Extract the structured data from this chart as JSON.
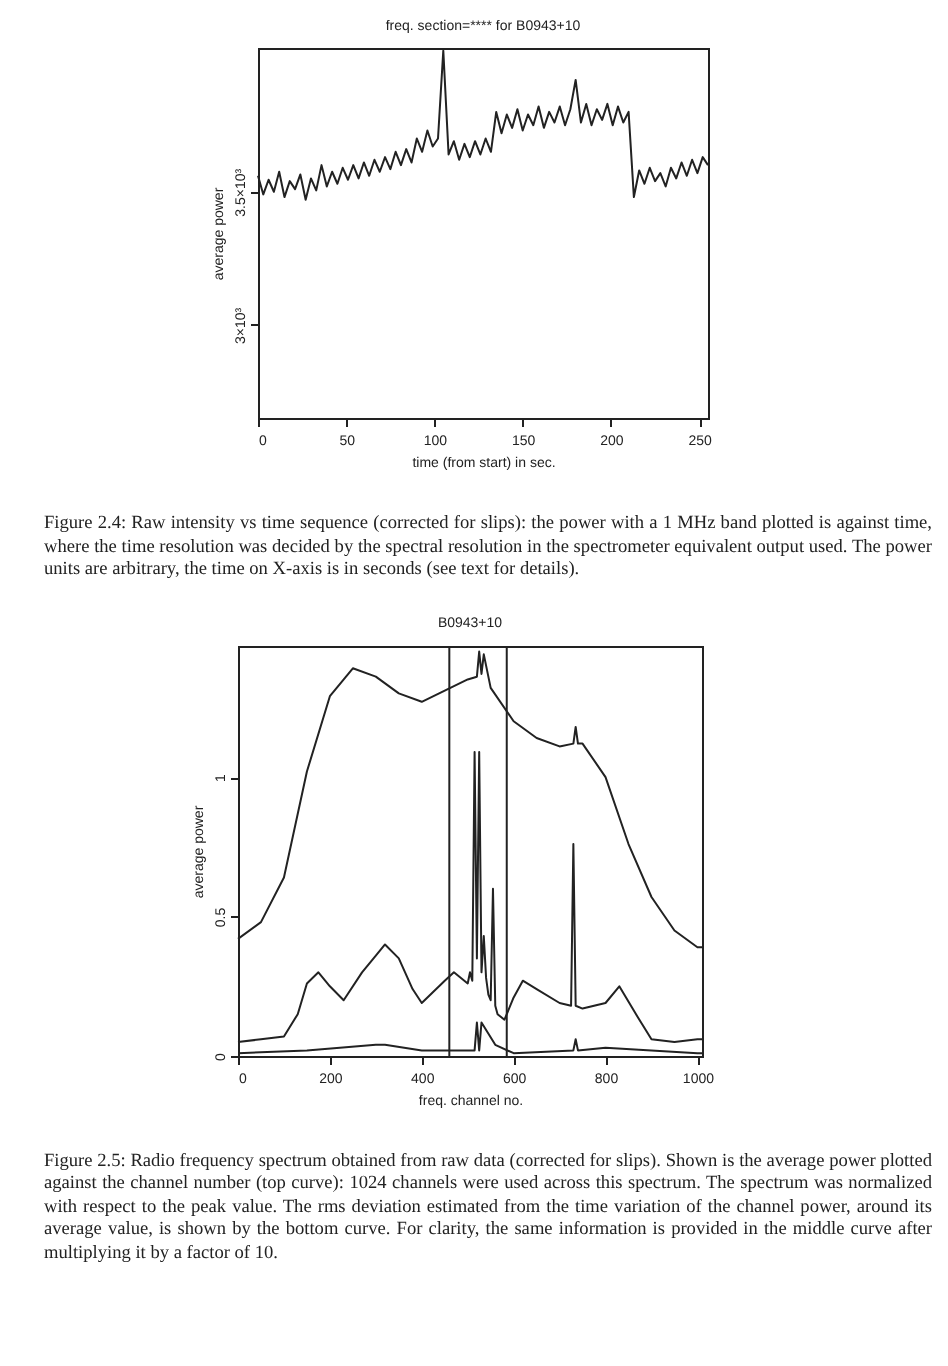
{
  "chart_data": [
    {
      "type": "line",
      "title": "freq. section=**** for B0943+10",
      "xlabel": "time (from start) in sec.",
      "ylabel": "average power",
      "x": [
        0,
        3,
        6,
        9,
        12,
        15,
        18,
        21,
        24,
        27,
        30,
        33,
        36,
        39,
        42,
        45,
        48,
        51,
        54,
        57,
        60,
        63,
        66,
        69,
        72,
        75,
        78,
        81,
        84,
        87,
        90,
        93,
        96,
        99,
        102,
        105,
        108,
        111,
        114,
        117,
        120,
        123,
        126,
        129,
        132,
        135,
        138,
        141,
        144,
        147,
        150,
        153,
        156,
        159,
        162,
        165,
        168,
        171,
        174,
        177,
        180,
        183,
        186,
        189,
        192,
        195,
        198,
        201,
        204,
        207,
        210,
        213,
        216,
        219,
        222,
        225,
        228,
        231,
        234,
        237,
        240,
        243,
        246,
        249,
        252,
        255
      ],
      "series": [
        {
          "color": "#222222",
          "values": [
            3560,
            3490,
            3545,
            3500,
            3575,
            3480,
            3540,
            3510,
            3565,
            3470,
            3550,
            3505,
            3600,
            3520,
            3575,
            3530,
            3590,
            3545,
            3600,
            3550,
            3610,
            3560,
            3620,
            3575,
            3630,
            3585,
            3650,
            3600,
            3660,
            3610,
            3700,
            3650,
            3730,
            3670,
            3700,
            4030,
            3640,
            3690,
            3620,
            3680,
            3630,
            3690,
            3640,
            3700,
            3650,
            3800,
            3720,
            3790,
            3740,
            3810,
            3730,
            3790,
            3750,
            3820,
            3740,
            3800,
            3760,
            3820,
            3750,
            3810,
            3920,
            3760,
            3830,
            3750,
            3810,
            3770,
            3830,
            3750,
            3820,
            3760,
            3800,
            3480,
            3580,
            3530,
            3590,
            3540,
            3570,
            3520,
            3590,
            3550,
            3610,
            3560,
            3620,
            3570,
            3630,
            3600
          ]
        }
      ],
      "xlim": [
        0,
        255
      ],
      "xticks": [
        0,
        50,
        100,
        150,
        200,
        250
      ],
      "ylim": [
        2650,
        4040
      ],
      "yticks": [
        {
          "value": 3000,
          "label": "3×10³"
        },
        {
          "value": 3500,
          "label": "3.5×10³"
        }
      ],
      "grid": false,
      "annotations": [
        "Figure 2.4: Raw intensity vs time sequence (corrected for slips): the power with a 1 MHz band plotted is against time, where the time resolution was decided by the spectral resolution in the spectrometer equivalent output used. The power units are arbitrary, the time on X-axis is in seconds (see text for details)."
      ]
    },
    {
      "type": "line",
      "title": "B0943+10",
      "xlabel": "freq. channel no.",
      "ylabel": "average power",
      "series": [
        {
          "color": "#222222",
          "x": [
            0,
            50,
            100,
            150,
            200,
            250,
            300,
            350,
            400,
            450,
            500,
            520,
            525,
            530,
            535,
            550,
            600,
            650,
            700,
            730,
            735,
            740,
            750,
            800,
            850,
            900,
            950,
            1000,
            1010
          ],
          "values": [
            0.42,
            0.48,
            0.64,
            1.02,
            1.29,
            1.39,
            1.36,
            1.3,
            1.27,
            1.31,
            1.35,
            1.36,
            1.45,
            1.37,
            1.44,
            1.32,
            1.2,
            1.14,
            1.11,
            1.12,
            1.18,
            1.12,
            1.12,
            1.0,
            0.76,
            0.57,
            0.45,
            0.39,
            0.39
          ]
        },
        {
          "color": "#222222",
          "x": [
            0,
            50,
            100,
            130,
            150,
            175,
            200,
            230,
            270,
            300,
            320,
            350,
            380,
            400,
            450,
            470,
            500,
            505,
            510,
            515,
            520,
            525,
            530,
            535,
            540,
            545,
            550,
            555,
            560,
            565,
            580,
            600,
            620,
            650,
            700,
            725,
            730,
            735,
            750,
            800,
            830,
            870,
            900,
            950,
            1000,
            1010
          ],
          "values": [
            0.05,
            0.06,
            0.07,
            0.15,
            0.26,
            0.3,
            0.25,
            0.2,
            0.3,
            0.36,
            0.4,
            0.35,
            0.24,
            0.19,
            0.27,
            0.3,
            0.26,
            0.3,
            0.27,
            1.09,
            0.35,
            1.09,
            0.3,
            0.43,
            0.28,
            0.22,
            0.2,
            0.6,
            0.18,
            0.15,
            0.13,
            0.21,
            0.27,
            0.24,
            0.19,
            0.18,
            0.76,
            0.18,
            0.17,
            0.19,
            0.25,
            0.14,
            0.06,
            0.05,
            0.06,
            0.06
          ]
        },
        {
          "color": "#222222",
          "x": [
            0,
            150,
            300,
            320,
            400,
            500,
            515,
            520,
            525,
            530,
            560,
            600,
            730,
            735,
            740,
            800,
            900,
            1000,
            1010
          ],
          "values": [
            0.01,
            0.02,
            0.04,
            0.04,
            0.02,
            0.02,
            0.02,
            0.12,
            0.02,
            0.12,
            0.04,
            0.01,
            0.02,
            0.06,
            0.02,
            0.03,
            0.02,
            0.01,
            0.01
          ]
        }
      ],
      "xlim": [
        0,
        1010
      ],
      "xticks": [
        0,
        200,
        400,
        600,
        800,
        1000
      ],
      "ylim": [
        0,
        1.47
      ],
      "yticks": [
        0,
        0.5,
        1
      ],
      "ref_lines": [
        {
          "axis": "x",
          "value": 460,
          "color": "#222222"
        },
        {
          "axis": "x",
          "value": 585,
          "color": "#222222"
        }
      ],
      "grid": false,
      "annotations": [
        "Figure 2.5: Radio frequency spectrum obtained from raw data (corrected for slips). Shown is the average power plotted against the channel number (top curve): 1024 channels were used across this spectrum. The spectrum was normalized with respect to the peak value. The rms deviation estimated from the time variation of the channel power, around its average value, is shown by the bottom curve. For clarity, the same information is provided in the middle curve after multiplying it by a factor of 10."
      ]
    }
  ]
}
